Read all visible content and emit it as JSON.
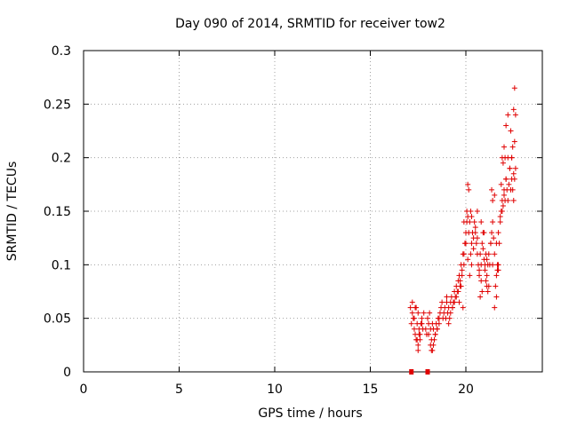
{
  "chart_data": {
    "type": "scatter",
    "title": "Day 090 of 2014, SRMTID for receiver tow2",
    "xlabel": "GPS time / hours",
    "ylabel": "SRMTID / TECUs",
    "xlim": [
      0,
      24
    ],
    "ylim": [
      0,
      0.3
    ],
    "xticks": [
      0,
      5,
      10,
      15,
      20
    ],
    "yticks": [
      0,
      0.05,
      0.1,
      0.15,
      0.2,
      0.25,
      0.3
    ],
    "xtick_labels": [
      "0",
      "5",
      "10",
      "15",
      "20"
    ],
    "ytick_labels": [
      "0",
      "0.05",
      "0.1",
      "0.15",
      "0.2",
      "0.25",
      "0.3"
    ],
    "grid": true,
    "marker": "+",
    "color": "#e00000",
    "series": [
      {
        "x": [
          17.1,
          17.2,
          17.15,
          17.25,
          17.3,
          17.2,
          17.35,
          17.4,
          17.3,
          17.45,
          17.5,
          17.4,
          17.55,
          17.6,
          17.5,
          17.65,
          17.7,
          17.6,
          17.75,
          17.8,
          17.5,
          17.45,
          17.35,
          17.55,
          17.7,
          17.9,
          18.0,
          18.05,
          17.95,
          18.1,
          18.15,
          18.2,
          18.25,
          18.3,
          18.2,
          18.35,
          18.4,
          18.3,
          18.45,
          18.5,
          18.4,
          18.55,
          18.6,
          18.5,
          18.65,
          18.7,
          18.6,
          18.75,
          18.8,
          18.85,
          18.9,
          18.95,
          19.0,
          19.05,
          19.1,
          19.0,
          19.15,
          19.2,
          19.1,
          19.25,
          19.3,
          19.2,
          19.35,
          19.4,
          19.3,
          19.45,
          19.5,
          19.4,
          19.55,
          19.6,
          19.5,
          19.65,
          19.7,
          19.6,
          19.75,
          19.8,
          19.7,
          19.85,
          19.9,
          19.8,
          19.95,
          20.0,
          19.9,
          20.05,
          20.1,
          20.0,
          20.15,
          20.2,
          20.1,
          20.25,
          20.3,
          20.2,
          20.35,
          20.4,
          20.3,
          20.45,
          20.5,
          20.4,
          20.55,
          20.6,
          20.5,
          20.65,
          20.7,
          20.6,
          20.75,
          20.8,
          20.7,
          20.85,
          20.9,
          20.8,
          20.95,
          21.0,
          20.9,
          21.05,
          21.1,
          21.0,
          21.15,
          21.2,
          21.1,
          21.25,
          21.3,
          21.2,
          21.35,
          21.4,
          21.3,
          21.45,
          21.5,
          21.4,
          21.55,
          21.6,
          21.5,
          21.65,
          21.7,
          21.6,
          21.75,
          21.8,
          21.7,
          21.85,
          21.9,
          21.8,
          21.95,
          22.0,
          21.9,
          22.05,
          22.1,
          22.0,
          22.15,
          22.2,
          22.1,
          22.25,
          22.3,
          22.2,
          22.35,
          22.4,
          22.3,
          22.45,
          22.5,
          22.4,
          22.55,
          22.6,
          22.5,
          22.55,
          22.6,
          22.45,
          22.5,
          22.55,
          22.35,
          22.4,
          22.2,
          22.1,
          22.0,
          21.9,
          21.95,
          22.05,
          21.85,
          20.1,
          20.15,
          20.05,
          20.3,
          20.25,
          19.9,
          21.4,
          21.35,
          21.5,
          20.6,
          20.8,
          20.95,
          21.05,
          21.1,
          21.15,
          21.6,
          21.65,
          21.7,
          20.75,
          20.85,
          19.75,
          19.65,
          19.85,
          18.05,
          18.15,
          18.25,
          17.15,
          18.0
        ],
        "y": [
          0.06,
          0.055,
          0.045,
          0.05,
          0.04,
          0.065,
          0.035,
          0.03,
          0.05,
          0.045,
          0.025,
          0.06,
          0.04,
          0.035,
          0.02,
          0.045,
          0.05,
          0.03,
          0.04,
          0.055,
          0.055,
          0.03,
          0.06,
          0.035,
          0.045,
          0.04,
          0.05,
          0.045,
          0.035,
          0.055,
          0.04,
          0.03,
          0.045,
          0.025,
          0.02,
          0.03,
          0.035,
          0.04,
          0.045,
          0.04,
          0.035,
          0.05,
          0.045,
          0.04,
          0.055,
          0.06,
          0.05,
          0.065,
          0.05,
          0.055,
          0.06,
          0.05,
          0.065,
          0.055,
          0.06,
          0.07,
          0.05,
          0.065,
          0.045,
          0.07,
          0.06,
          0.055,
          0.065,
          0.075,
          0.06,
          0.07,
          0.08,
          0.065,
          0.075,
          0.085,
          0.07,
          0.09,
          0.08,
          0.075,
          0.1,
          0.09,
          0.085,
          0.11,
          0.1,
          0.095,
          0.12,
          0.13,
          0.11,
          0.14,
          0.145,
          0.12,
          0.13,
          0.14,
          0.105,
          0.11,
          0.12,
          0.09,
          0.13,
          0.125,
          0.1,
          0.14,
          0.13,
          0.115,
          0.12,
          0.11,
          0.135,
          0.1,
          0.095,
          0.125,
          0.11,
          0.1,
          0.09,
          0.12,
          0.13,
          0.085,
          0.105,
          0.1,
          0.115,
          0.11,
          0.09,
          0.095,
          0.1,
          0.08,
          0.105,
          0.1,
          0.12,
          0.11,
          0.13,
          0.14,
          0.12,
          0.125,
          0.11,
          0.1,
          0.08,
          0.07,
          0.06,
          0.095,
          0.1,
          0.09,
          0.12,
          0.14,
          0.13,
          0.15,
          0.16,
          0.145,
          0.155,
          0.17,
          0.15,
          0.16,
          0.18,
          0.165,
          0.17,
          0.16,
          0.18,
          0.175,
          0.19,
          0.2,
          0.17,
          0.18,
          0.19,
          0.17,
          0.16,
          0.2,
          0.18,
          0.19,
          0.245,
          0.265,
          0.24,
          0.21,
          0.185,
          0.215,
          0.225,
          0.2,
          0.24,
          0.23,
          0.21,
          0.2,
          0.195,
          0.2,
          0.175,
          0.175,
          0.17,
          0.15,
          0.145,
          0.15,
          0.14,
          0.16,
          0.17,
          0.165,
          0.15,
          0.14,
          0.13,
          0.085,
          0.08,
          0.075,
          0.12,
          0.1,
          0.095,
          0.07,
          0.075,
          0.08,
          0.065,
          0.06,
          0.035,
          0.025,
          0.02,
          0.0,
          0.0
        ]
      }
    ]
  }
}
